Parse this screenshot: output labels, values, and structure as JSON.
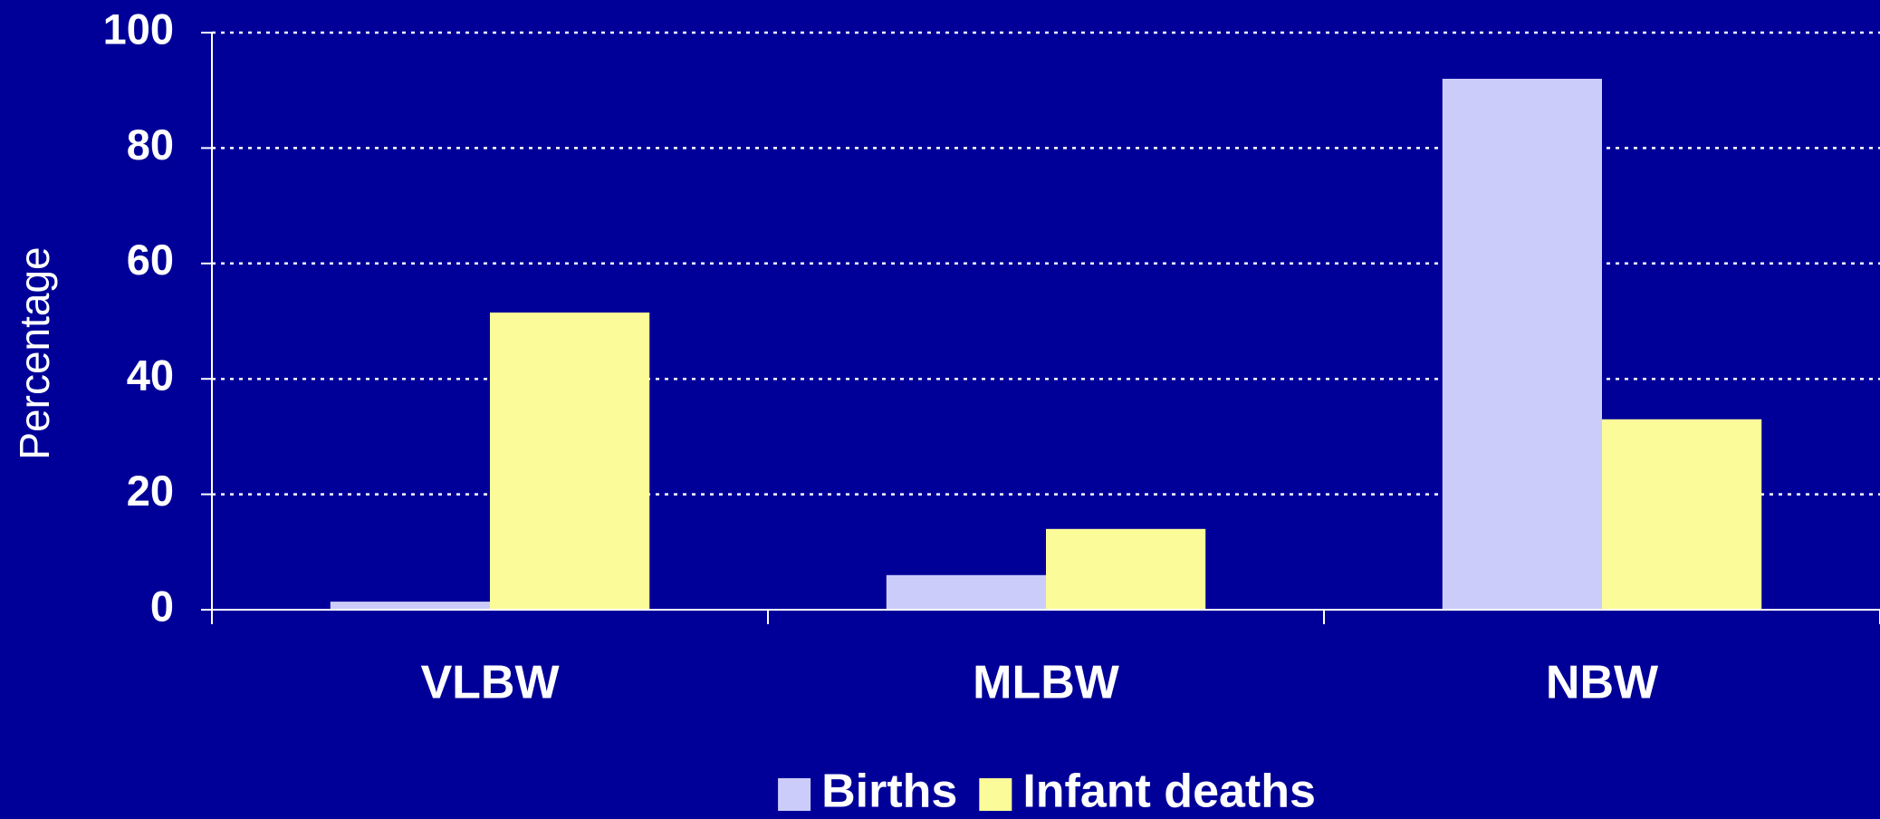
{
  "chart_data": {
    "type": "bar",
    "categories": [
      "VLBW",
      "MLBW",
      "NBW"
    ],
    "series": [
      {
        "name": "Births",
        "color": "#ccccfa",
        "values": [
          1.4,
          6,
          92
        ]
      },
      {
        "name": "Infant deaths",
        "color": "#fbfb99",
        "values": [
          51.5,
          14,
          33
        ]
      }
    ],
    "y_axis_label": "Percentage",
    "ylim": [
      0,
      100
    ],
    "yticks": [
      0,
      20,
      40,
      60,
      80,
      100
    ],
    "grid": true,
    "legend": "bottom"
  }
}
